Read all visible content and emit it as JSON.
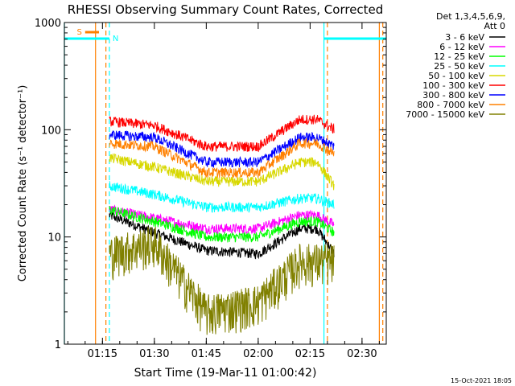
{
  "chart_data": {
    "type": "line",
    "title": "RHESSI Observing Summary Count Rates, Corrected",
    "xlabel": "Start Time (19-Mar-11 01:00:42)",
    "ylabel": "Corrected Count Rate (s⁻¹ detector⁻¹)",
    "y_scale": "log",
    "ylim": [
      1,
      1000
    ],
    "xlim": [
      "01:04",
      "02:37"
    ],
    "x_ticks": [
      "01:15",
      "01:30",
      "01:45",
      "02:00",
      "02:15",
      "02:30"
    ],
    "y_ticks": [
      "1",
      "10",
      "100",
      "1000"
    ],
    "legend_header": [
      "Det 1,3,4,5,6,9,",
      "Att 0"
    ],
    "legend_position": "right",
    "flags": [
      {
        "label": "S",
        "start": "01:10",
        "end": "01:14",
        "color": "#ff8000"
      },
      {
        "label": "N",
        "start": "01:04",
        "end": "01:17",
        "color": "#00ffff"
      },
      {
        "label": "",
        "start": "02:19",
        "end": "02:37",
        "color": "#00ffff"
      }
    ],
    "markers": [
      {
        "time": "01:04",
        "color": "#00ffff",
        "style": "solid"
      },
      {
        "time": "01:13",
        "color": "#ff8000",
        "style": "solid"
      },
      {
        "time": "01:16",
        "color": "#ff8000",
        "style": "dashed"
      },
      {
        "time": "01:17",
        "color": "#00ffff",
        "style": "dashed"
      },
      {
        "time": "02:19",
        "color": "#00ffff",
        "style": "solid"
      },
      {
        "time": "02:20",
        "color": "#ff8000",
        "style": "dashed"
      },
      {
        "time": "02:35",
        "color": "#ff8000",
        "style": "solid"
      },
      {
        "time": "02:36",
        "color": "#ff8000",
        "style": "dashed"
      }
    ],
    "series": [
      {
        "name": "3 - 6 keV",
        "color": "#000000",
        "x": [
          "01:17",
          "01:30",
          "01:45",
          "02:00",
          "02:12",
          "02:17",
          "02:22"
        ],
        "values": [
          16,
          11,
          7.5,
          7,
          12,
          12,
          7
        ]
      },
      {
        "name": "6 - 12 keV",
        "color": "#ff00ff",
        "x": [
          "01:17",
          "01:30",
          "01:45",
          "02:00",
          "02:12",
          "02:17",
          "02:22"
        ],
        "values": [
          18,
          15,
          12,
          12,
          16,
          16,
          13
        ]
      },
      {
        "name": "12 - 25 keV",
        "color": "#00ff00",
        "x": [
          "01:17",
          "01:30",
          "01:45",
          "02:00",
          "02:12",
          "02:17",
          "02:22"
        ],
        "values": [
          18,
          14,
          10,
          10,
          14,
          14,
          11
        ]
      },
      {
        "name": "25 - 50 keV",
        "color": "#00ffff",
        "x": [
          "01:17",
          "01:30",
          "01:45",
          "02:00",
          "02:12",
          "02:17",
          "02:22"
        ],
        "values": [
          30,
          25,
          19,
          19,
          23,
          23,
          20
        ]
      },
      {
        "name": "50 - 100 keV",
        "color": "#d8d800",
        "x": [
          "01:17",
          "01:30",
          "01:45",
          "02:00",
          "02:12",
          "02:17",
          "02:22"
        ],
        "values": [
          55,
          45,
          33,
          33,
          50,
          50,
          30
        ]
      },
      {
        "name": "100 - 300 keV",
        "color": "#ff0000",
        "x": [
          "01:17",
          "01:30",
          "01:45",
          "02:00",
          "02:12",
          "02:17",
          "02:22"
        ],
        "values": [
          120,
          110,
          70,
          70,
          125,
          125,
          100
        ]
      },
      {
        "name": "300 - 800 keV",
        "color": "#0000ff",
        "x": [
          "01:17",
          "01:30",
          "01:45",
          "02:00",
          "02:12",
          "02:17",
          "02:22"
        ],
        "values": [
          90,
          85,
          50,
          50,
          85,
          85,
          70
        ]
      },
      {
        "name": "800 - 7000 keV",
        "color": "#ff8000",
        "x": [
          "01:17",
          "01:30",
          "01:45",
          "02:00",
          "02:12",
          "02:17",
          "02:22"
        ],
        "values": [
          75,
          70,
          40,
          40,
          75,
          75,
          60
        ]
      },
      {
        "name": "7000 - 15000 keV",
        "color": "#808000",
        "x": [
          "01:17",
          "01:30",
          "01:45",
          "02:00",
          "02:12",
          "02:17",
          "02:22"
        ],
        "values": [
          7,
          9,
          2,
          2.5,
          6,
          6,
          6
        ]
      }
    ]
  },
  "footer_timestamp": "15-Oct-2021 18:05"
}
